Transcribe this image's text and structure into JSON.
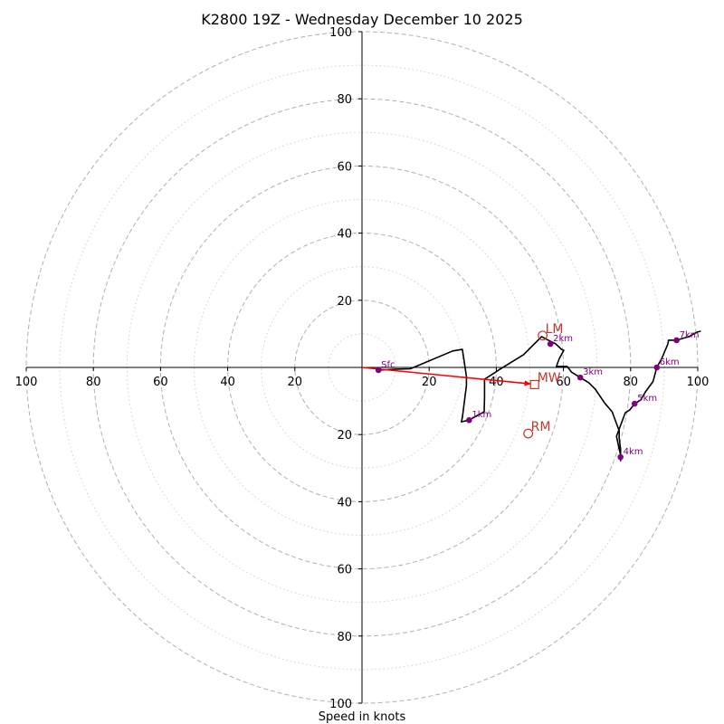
{
  "chart_data": {
    "type": "hodograph",
    "title": "K2800 19Z - Wednesday December 10 2025",
    "xlabel": "Speed in knots",
    "rings_dashed": [
      20,
      40,
      60,
      80,
      100
    ],
    "rings_dotted": [
      10,
      30,
      50,
      70,
      90
    ],
    "xlim": [
      -100,
      100
    ],
    "ylim": [
      -100,
      100
    ],
    "x_ticks": [
      {
        "value": -100,
        "label": "100"
      },
      {
        "value": -80,
        "label": "80"
      },
      {
        "value": -60,
        "label": "60"
      },
      {
        "value": -40,
        "label": "40"
      },
      {
        "value": -20,
        "label": "20"
      },
      {
        "value": 20,
        "label": "20"
      },
      {
        "value": 40,
        "label": "40"
      },
      {
        "value": 60,
        "label": "60"
      },
      {
        "value": 80,
        "label": "80"
      },
      {
        "value": 100,
        "label": "100"
      }
    ],
    "y_ticks": [
      {
        "value": 100,
        "label": "100"
      },
      {
        "value": 80,
        "label": "80"
      },
      {
        "value": 60,
        "label": "60"
      },
      {
        "value": 40,
        "label": "40"
      },
      {
        "value": 20,
        "label": "20"
      },
      {
        "value": -20,
        "label": "20"
      },
      {
        "value": -40,
        "label": "40"
      },
      {
        "value": -60,
        "label": "60"
      },
      {
        "value": -80,
        "label": "80"
      },
      {
        "value": -100,
        "label": "100"
      }
    ],
    "trace": [
      [
        4.9,
        -0.8
      ],
      [
        10,
        -0.5
      ],
      [
        14.4,
        -0.4
      ],
      [
        27,
        4.9
      ],
      [
        29.9,
        5.4
      ],
      [
        31.1,
        -2.7
      ],
      [
        31.1,
        -5.4
      ],
      [
        29.9,
        -14.9
      ],
      [
        29.6,
        -16.2
      ],
      [
        31.9,
        -15.7
      ],
      [
        36.4,
        -13.2
      ],
      [
        36.5,
        -8.9
      ],
      [
        36.5,
        -3.5
      ],
      [
        39.5,
        -1.6
      ],
      [
        41.1,
        -0.5
      ],
      [
        48.1,
        3.8
      ],
      [
        53.5,
        9.2
      ],
      [
        54.9,
        8.4
      ],
      [
        57.7,
        7
      ],
      [
        59.4,
        5.4
      ],
      [
        60.1,
        5.1
      ],
      [
        58.8,
        2.7
      ],
      [
        57.9,
        0.3
      ],
      [
        61.1,
        0.3
      ],
      [
        62.4,
        -1.4
      ],
      [
        65,
        -3
      ],
      [
        67.6,
        -4.6
      ],
      [
        69.5,
        -6.5
      ],
      [
        72.2,
        -10.5
      ],
      [
        72.7,
        -11.1
      ],
      [
        74.5,
        -13.2
      ],
      [
        76.6,
        -18.9
      ],
      [
        76.6,
        -21.1
      ],
      [
        77,
        -24.3
      ],
      [
        77,
        -27.8
      ],
      [
        77,
        -25.9
      ],
      [
        76.6,
        -24.3
      ],
      [
        75.8,
        -20.5
      ],
      [
        78.4,
        -13.5
      ],
      [
        79.7,
        -12.7
      ],
      [
        81.2,
        -10.8
      ],
      [
        83,
        -9.7
      ],
      [
        84.4,
        -7.3
      ],
      [
        86.6,
        -4.3
      ],
      [
        86.8,
        -3.8
      ],
      [
        87.8,
        0
      ],
      [
        89.3,
        2.7
      ],
      [
        91.1,
        7
      ],
      [
        91.3,
        8.1
      ],
      [
        93.7,
        8.1
      ],
      [
        97.4,
        9.2
      ],
      [
        99.8,
        10.5
      ],
      [
        100.9,
        10.8
      ]
    ],
    "height_points": [
      {
        "label": "Sfc",
        "x": 4.9,
        "y": -0.8
      },
      {
        "label": "1km",
        "x": 31.9,
        "y": -15.7
      },
      {
        "label": "2km",
        "x": 56.1,
        "y": 7.0
      },
      {
        "label": "3km",
        "x": 65.0,
        "y": -3.0
      },
      {
        "label": "4km",
        "x": 77.0,
        "y": -26.7
      },
      {
        "label": "5km",
        "x": 81.2,
        "y": -10.8
      },
      {
        "label": "6km",
        "x": 87.8,
        "y": 0.0
      },
      {
        "label": "7km",
        "x": 93.7,
        "y": 8.1
      }
    ],
    "motions": [
      {
        "label": "LM",
        "x": 53.8,
        "y": 9.5,
        "marker": "circle"
      },
      {
        "label": "MW",
        "x": 51.4,
        "y": -5.1,
        "marker": "square"
      },
      {
        "label": "RM",
        "x": 49.5,
        "y": -19.7,
        "marker": "circle"
      }
    ],
    "shear_vector": {
      "from": [
        0,
        0
      ],
      "to": [
        50.3,
        -4.9
      ]
    },
    "colors": {
      "trace": "#000000",
      "points": "#800080",
      "motion": "#c0392b",
      "shear": "#ff0000",
      "ring": "#b0b0b0",
      "axis": "#000000"
    }
  }
}
